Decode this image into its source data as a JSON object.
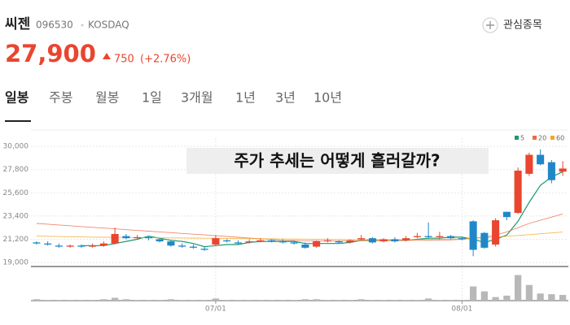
{
  "header": {
    "name": "씨젠",
    "code": "096530",
    "market": "KOSDAQ",
    "price": "27,900",
    "change": "750",
    "change_pct": "(+2.76%)",
    "watch_label": "관심종목"
  },
  "tabs": [
    "일봉",
    "주봉",
    "월봉",
    "1일",
    "3개월",
    "1년",
    "3년",
    "10년"
  ],
  "chart_data": {
    "type": "candlestick",
    "annotation": "주가 추세는 어떻게 흘러갈까?",
    "categories": [
      null,
      null,
      null,
      null,
      null,
      null,
      null,
      null,
      null,
      null,
      null,
      null,
      null,
      null,
      null,
      null,
      "07/01",
      null,
      null,
      null,
      null,
      null,
      null,
      null,
      null,
      null,
      null,
      null,
      null,
      null,
      null,
      null,
      null,
      null,
      null,
      null,
      null,
      null,
      "08/01",
      null,
      null,
      null,
      null,
      null,
      null,
      null,
      null,
      null
    ],
    "open": [
      20900,
      20800,
      20600,
      20500,
      20600,
      20500,
      20600,
      20800,
      21500,
      21300,
      21400,
      21200,
      21000,
      20600,
      20500,
      20300,
      20700,
      21100,
      20900,
      20900,
      21000,
      21100,
      21000,
      20900,
      20700,
      20500,
      21000,
      21000,
      20900,
      21200,
      21300,
      21000,
      21200,
      21100,
      21400,
      21500,
      21400,
      21500,
      21300,
      22900,
      21800,
      20700,
      23800,
      23700,
      27400,
      29200,
      28500,
      27600
    ],
    "high": [
      21000,
      21000,
      20800,
      20700,
      20700,
      20800,
      21000,
      22300,
      21700,
      21600,
      21500,
      21300,
      21100,
      20800,
      20700,
      20500,
      21600,
      21200,
      21100,
      21200,
      21300,
      21200,
      21200,
      21000,
      20900,
      21100,
      21300,
      21100,
      21200,
      21600,
      21400,
      21300,
      21400,
      21500,
      21800,
      22800,
      21900,
      21600,
      21400,
      23000,
      21900,
      23200,
      23800,
      28000,
      29400,
      29700,
      28700,
      28600
    ],
    "low": [
      20700,
      20600,
      20400,
      20400,
      20400,
      20400,
      20500,
      20700,
      21200,
      21200,
      21100,
      20900,
      20500,
      20400,
      20300,
      20100,
      20600,
      20900,
      20700,
      20800,
      20900,
      20900,
      20800,
      20700,
      20300,
      20400,
      20900,
      20800,
      20800,
      21100,
      20800,
      20900,
      20900,
      21000,
      21300,
      21300,
      21200,
      21200,
      21100,
      19600,
      20300,
      20500,
      23000,
      23600,
      27200,
      28200,
      26500,
      27200
    ],
    "close": [
      20800,
      20700,
      20500,
      20600,
      20500,
      20600,
      20800,
      21700,
      21300,
      21400,
      21300,
      21000,
      20600,
      20500,
      20400,
      20200,
      21300,
      21000,
      20800,
      21000,
      21100,
      21000,
      20900,
      20800,
      20400,
      21000,
      21100,
      20900,
      21100,
      21300,
      20900,
      21200,
      21000,
      21300,
      21500,
      21400,
      21500,
      21300,
      21200,
      20200,
      20400,
      23000,
      23300,
      27700,
      29200,
      28300,
      26800,
      27900
    ],
    "ylim": [
      18620,
      30780
    ],
    "yticks": [
      {
        "value": 19000,
        "label": "19,000"
      },
      {
        "value": 21200,
        "label": "21,200"
      },
      {
        "value": 23400,
        "label": "23,400"
      },
      {
        "value": 25600,
        "label": "25,600"
      },
      {
        "value": 27800,
        "label": "27,800"
      },
      {
        "value": 30000,
        "label": "30,000"
      }
    ],
    "up_color": "#e9452f",
    "down_color": "#1f87c8",
    "grid": true,
    "legend": "top-right",
    "moving_averages": [
      {
        "name": "5",
        "color": "#1a9a6c",
        "values": [
          null,
          null,
          null,
          null,
          20600,
          20600,
          20600,
          20800,
          21000,
          21200,
          21500,
          21300,
          21100,
          21000,
          20800,
          20500,
          20600,
          20700,
          20700,
          20900,
          21000,
          21000,
          21000,
          21000,
          20800,
          20800,
          20800,
          20800,
          20900,
          21100,
          21100,
          21100,
          21100,
          21100,
          21200,
          21300,
          21300,
          21400,
          21400,
          21200,
          20900,
          21200,
          21600,
          22900,
          24700,
          26300,
          27100,
          27600
        ]
      },
      {
        "name": "20",
        "color": "#f06a4a",
        "values": [
          22700,
          22630,
          22550,
          22480,
          22400,
          22330,
          22260,
          22190,
          22110,
          22040,
          21970,
          21900,
          21830,
          21750,
          21680,
          21610,
          21540,
          21470,
          21390,
          21320,
          21250,
          21180,
          21100,
          21080,
          21060,
          21050,
          21040,
          21040,
          21050,
          21060,
          21070,
          21080,
          21090,
          21100,
          21110,
          21120,
          21130,
          21140,
          21200,
          21300,
          21400,
          21600,
          21900,
          22300,
          22700,
          23000,
          23300,
          23600
        ]
      },
      {
        "name": "60",
        "color": "#f5a623",
        "values": [
          21500,
          21480,
          21460,
          21440,
          21420,
          21400,
          21390,
          21380,
          21370,
          21360,
          21350,
          21340,
          21330,
          21320,
          21310,
          21300,
          21290,
          21280,
          21270,
          21260,
          21250,
          21240,
          21230,
          21220,
          21210,
          21200,
          21190,
          21180,
          21170,
          21160,
          21150,
          21150,
          21150,
          21160,
          21170,
          21180,
          21190,
          21200,
          21250,
          21300,
          21350,
          21400,
          21480,
          21560,
          21640,
          21720,
          21800,
          21880
        ]
      }
    ],
    "volume": {
      "color": "#b8b8b8",
      "ylim": [
        0,
        40
      ],
      "values": [
        2,
        1,
        1,
        1,
        1,
        1,
        2,
        4,
        2,
        1,
        1,
        1,
        2,
        1,
        1,
        1,
        3,
        1,
        1,
        1,
        1,
        1,
        1,
        1,
        2,
        2,
        1,
        1,
        1,
        2,
        1,
        1,
        1,
        1,
        1,
        3,
        1,
        1,
        1,
        20,
        13,
        5,
        7,
        36,
        22,
        10,
        9,
        8
      ]
    }
  }
}
